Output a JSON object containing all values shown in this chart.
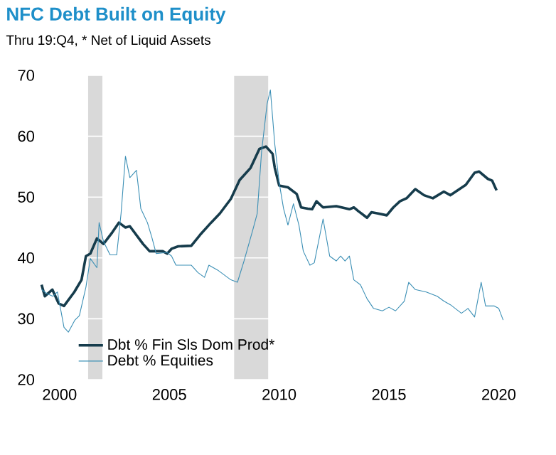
{
  "chart_data": {
    "type": "line",
    "title": "NFC Debt Built on Equity",
    "subtitle": "Thru 19:Q4, * Net of Liquid Assets",
    "xlim": [
      1999.1,
      2020.6
    ],
    "xticks": [
      2000,
      2005,
      2010,
      2015,
      2020
    ],
    "ylim": [
      20,
      70
    ],
    "yticks": [
      20,
      30,
      40,
      50,
      60,
      70
    ],
    "grid": "y",
    "legend": "bottom left",
    "bands": [
      {
        "axis": "x",
        "from": 2001.3,
        "to": 2001.95,
        "color": "#d9d9d9"
      },
      {
        "axis": "x",
        "from": 2007.95,
        "to": 2009.5,
        "color": "#d9d9d9"
      }
    ],
    "series": [
      {
        "name": "Dbt % Fin Sls Dom Prod*",
        "color": "#163c4c",
        "x": [
          1999.18,
          1999.33,
          1999.67,
          1999.96,
          2000.2,
          2000.67,
          2001.0,
          2001.2,
          2001.4,
          2001.7,
          2002.0,
          2002.4,
          2002.7,
          2003.0,
          2003.2,
          2003.8,
          2004.1,
          2004.7,
          2004.9,
          2005.1,
          2005.4,
          2006.0,
          2006.4,
          2006.9,
          2007.3,
          2007.8,
          2008.2,
          2008.7,
          2009.1,
          2009.4,
          2009.7,
          2009.8,
          2010.0,
          2010.4,
          2010.8,
          2011.0,
          2011.3,
          2011.5,
          2011.7,
          2012.0,
          2012.6,
          2013.2,
          2013.4,
          2013.6,
          2014.0,
          2014.2,
          2014.5,
          2014.9,
          2015.2,
          2015.5,
          2015.8,
          2016.2,
          2016.6,
          2017.0,
          2017.5,
          2017.8,
          2018.5,
          2018.9,
          2019.1,
          2019.5,
          2019.7,
          2019.9
        ],
        "values": [
          35.6,
          33.7,
          34.8,
          32.5,
          32.1,
          34.4,
          36.4,
          40.3,
          40.7,
          43.2,
          42.3,
          44.2,
          45.8,
          45.0,
          45.2,
          42.3,
          41.1,
          41.1,
          40.7,
          41.5,
          41.9,
          42.0,
          43.8,
          45.8,
          47.3,
          49.7,
          52.8,
          54.8,
          57.9,
          58.3,
          57.1,
          54.8,
          51.9,
          51.6,
          50.5,
          48.3,
          48.1,
          48.0,
          49.3,
          48.3,
          48.5,
          48.0,
          48.3,
          47.7,
          46.6,
          47.5,
          47.3,
          47.0,
          48.3,
          49.3,
          49.8,
          51.3,
          50.3,
          49.8,
          50.9,
          50.3,
          52.0,
          54.0,
          54.2,
          53.0,
          52.7,
          51.1
        ]
      },
      {
        "name": "Debt % Equities",
        "color": "#3b8fb5",
        "x": [
          1999.18,
          1999.44,
          1999.7,
          1999.9,
          2000.0,
          2000.2,
          2000.4,
          2000.7,
          2000.9,
          2001.2,
          2001.4,
          2001.7,
          2001.8,
          2002.0,
          2002.3,
          2002.6,
          2002.8,
          2003.0,
          2003.2,
          2003.5,
          2003.7,
          2004.0,
          2004.2,
          2004.4,
          2004.9,
          2005.1,
          2005.3,
          2006.0,
          2006.3,
          2006.6,
          2006.8,
          2007.2,
          2007.8,
          2008.1,
          2008.4,
          2008.8,
          2009.0,
          2009.2,
          2009.45,
          2009.6,
          2009.8,
          2010.0,
          2010.2,
          2010.4,
          2010.65,
          2010.9,
          2011.1,
          2011.4,
          2011.6,
          2012.0,
          2012.3,
          2012.6,
          2012.8,
          2013.0,
          2013.2,
          2013.4,
          2013.7,
          2014.0,
          2014.3,
          2014.7,
          2015.0,
          2015.3,
          2015.7,
          2015.9,
          2016.2,
          2016.7,
          2017.2,
          2017.5,
          2017.8,
          2018.3,
          2018.6,
          2018.9,
          2019.2,
          2019.4,
          2019.8,
          2020.0,
          2020.2
        ],
        "values": [
          34.8,
          34.1,
          33.7,
          34.4,
          32.5,
          28.6,
          27.8,
          29.8,
          30.5,
          35.2,
          39.9,
          38.4,
          45.8,
          42.7,
          40.5,
          40.5,
          47.3,
          56.7,
          53.2,
          54.4,
          48.1,
          45.8,
          43.4,
          40.7,
          40.9,
          40.3,
          38.8,
          38.8,
          37.6,
          36.8,
          38.8,
          38.0,
          36.4,
          36.0,
          39.5,
          44.6,
          47.3,
          57.5,
          65.3,
          67.6,
          58.7,
          52.4,
          48.1,
          45.4,
          48.9,
          45.4,
          41.1,
          38.8,
          39.2,
          46.4,
          40.3,
          39.5,
          40.3,
          39.5,
          40.3,
          36.4,
          35.6,
          33.3,
          31.7,
          31.3,
          31.9,
          31.3,
          32.9,
          36.0,
          34.8,
          34.4,
          33.7,
          32.9,
          32.3,
          30.9,
          31.7,
          30.3,
          36.0,
          32.1,
          32.1,
          31.7,
          29.8
        ]
      }
    ]
  }
}
